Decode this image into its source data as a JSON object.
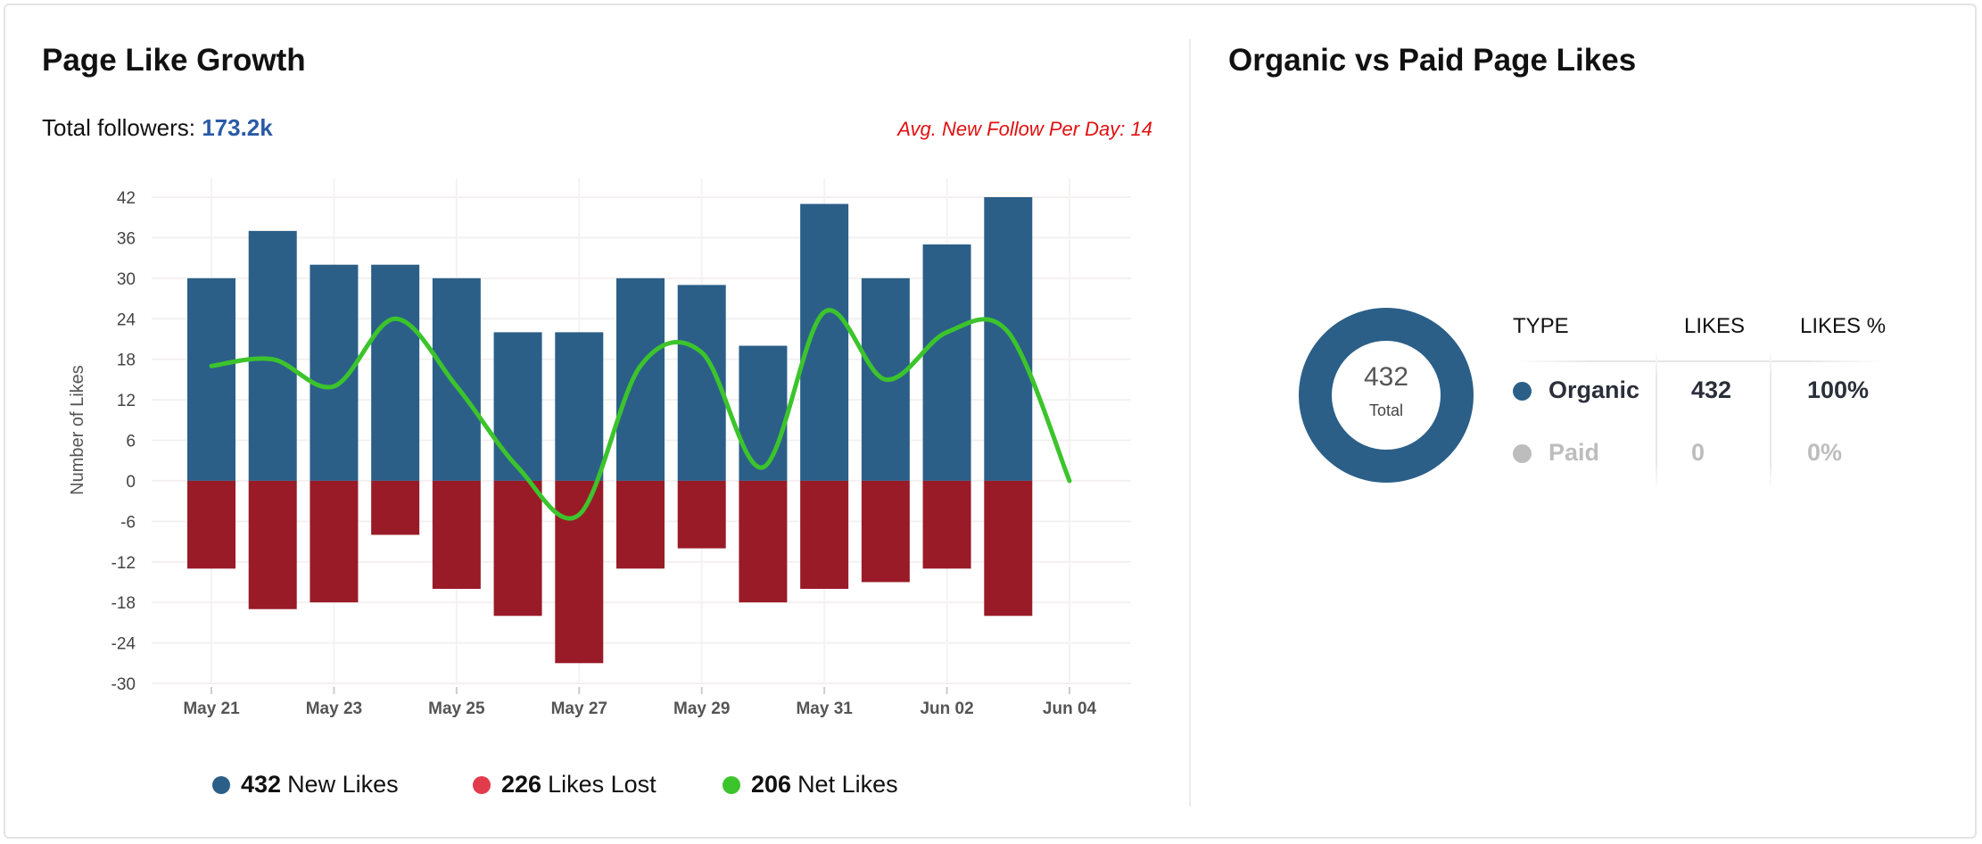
{
  "left_panel": {
    "title": "Page Like Growth",
    "total_followers_label": "Total followers:",
    "total_followers_value": "173.2k",
    "avg_text": "Avg. New Follow Per Day: 14"
  },
  "chart_data": {
    "type": "bar",
    "ylabel": "Number of Likes",
    "xlabel": "",
    "ylim": [
      -30,
      42
    ],
    "yticks": [
      42,
      36,
      30,
      24,
      18,
      12,
      6,
      0,
      -6,
      -12,
      -18,
      -24,
      -30
    ],
    "xtick_labels": [
      "May 21",
      "May 23",
      "May 25",
      "May 27",
      "May 29",
      "May 31",
      "Jun 02",
      "Jun 04"
    ],
    "categories": [
      "May 21",
      "May 22",
      "May 23",
      "May 24",
      "May 25",
      "May 26",
      "May 27",
      "May 28",
      "May 29",
      "May 30",
      "May 31",
      "Jun 01",
      "Jun 02",
      "Jun 03",
      "Jun 04"
    ],
    "grid": true,
    "legend_position": "bottom",
    "series": [
      {
        "name": "New Likes",
        "kind": "bar",
        "color": "#2b5f88",
        "total": "432",
        "values": [
          30,
          37,
          32,
          32,
          30,
          22,
          22,
          30,
          29,
          20,
          41,
          30,
          35,
          42,
          0
        ]
      },
      {
        "name": "Likes Lost",
        "kind": "bar",
        "color": "#991b28",
        "legend_color": "#e23c4c",
        "total": "226",
        "values": [
          -13,
          -19,
          -18,
          -8,
          -16,
          -20,
          -27,
          -13,
          -10,
          -18,
          -16,
          -15,
          -13,
          -20,
          0
        ]
      },
      {
        "name": "Net Likes",
        "kind": "line",
        "color": "#3cc42c",
        "total": "206",
        "values": [
          17,
          18,
          14,
          24,
          14,
          2,
          -5,
          17,
          19,
          2,
          25,
          15,
          22,
          22,
          0
        ]
      }
    ]
  },
  "right_panel": {
    "title": "Organic vs Paid Page Likes",
    "donut": {
      "value": "432",
      "label": "Total",
      "color": "#2b5f88"
    },
    "table": {
      "headers": [
        "TYPE",
        "LIKES",
        "LIKES %"
      ],
      "rows": [
        {
          "type": "Organic",
          "likes": "432",
          "percent": "100%",
          "color": "#2b5f88"
        },
        {
          "type": "Paid",
          "likes": "0",
          "percent": "0%",
          "color": "#bdbdbd"
        }
      ]
    }
  }
}
